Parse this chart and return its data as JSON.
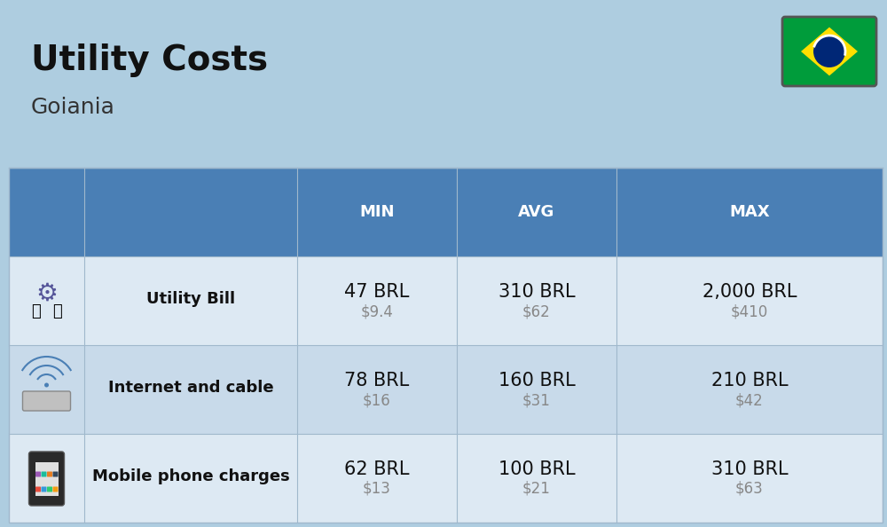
{
  "title": "Utility Costs",
  "subtitle": "Goiania",
  "background_color": "#aecde0",
  "header_color": "#4a7fb5",
  "header_text_color": "#ffffff",
  "row_colors": [
    "#dde9f3",
    "#c8daea"
  ],
  "col_headers": [
    "MIN",
    "AVG",
    "MAX"
  ],
  "rows": [
    {
      "label": "Utility Bill",
      "min_brl": "47 BRL",
      "min_usd": "$9.4",
      "avg_brl": "310 BRL",
      "avg_usd": "$62",
      "max_brl": "2,000 BRL",
      "max_usd": "$410",
      "icon": "utility"
    },
    {
      "label": "Internet and cable",
      "min_brl": "78 BRL",
      "min_usd": "$16",
      "avg_brl": "160 BRL",
      "avg_usd": "$31",
      "max_brl": "210 BRL",
      "max_usd": "$42",
      "icon": "internet"
    },
    {
      "label": "Mobile phone charges",
      "min_brl": "62 BRL",
      "min_usd": "$13",
      "avg_brl": "100 BRL",
      "avg_usd": "$21",
      "max_brl": "310 BRL",
      "max_usd": "$63",
      "icon": "mobile"
    }
  ],
  "title_fontsize": 28,
  "subtitle_fontsize": 18,
  "header_fontsize": 13,
  "label_fontsize": 13,
  "value_fontsize": 15,
  "usd_fontsize": 12
}
